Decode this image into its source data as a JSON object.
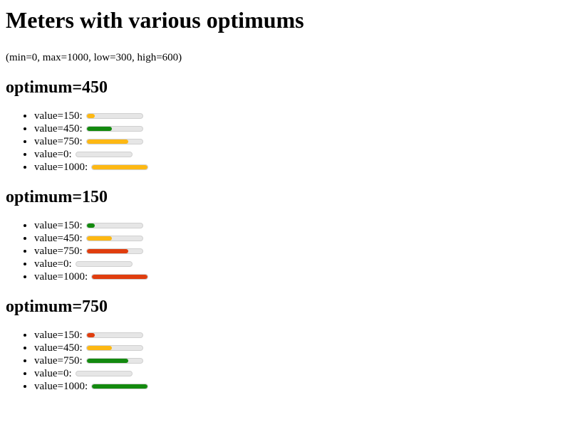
{
  "page": {
    "title": "Meters with various optimums",
    "subtitle": "(min=0, max=1000, low=300, high=600)"
  },
  "colors": {
    "good": "#138a0f",
    "suboptimal": "#fdb813",
    "poor": "#e03d0e",
    "track": "#e6e6e6"
  },
  "sections": [
    {
      "heading": "optimum=450",
      "items": [
        {
          "label": "value=150:",
          "value": 150,
          "status": "suboptimal"
        },
        {
          "label": "value=450:",
          "value": 450,
          "status": "good"
        },
        {
          "label": "value=750:",
          "value": 750,
          "status": "suboptimal"
        },
        {
          "label": "value=0:",
          "value": 0,
          "status": "suboptimal"
        },
        {
          "label": "value=1000:",
          "value": 1000,
          "status": "suboptimal"
        }
      ]
    },
    {
      "heading": "optimum=150",
      "items": [
        {
          "label": "value=150:",
          "value": 150,
          "status": "good"
        },
        {
          "label": "value=450:",
          "value": 450,
          "status": "suboptimal"
        },
        {
          "label": "value=750:",
          "value": 750,
          "status": "poor"
        },
        {
          "label": "value=0:",
          "value": 0,
          "status": "good"
        },
        {
          "label": "value=1000:",
          "value": 1000,
          "status": "poor"
        }
      ]
    },
    {
      "heading": "optimum=750",
      "items": [
        {
          "label": "value=150:",
          "value": 150,
          "status": "poor"
        },
        {
          "label": "value=450:",
          "value": 450,
          "status": "suboptimal"
        },
        {
          "label": "value=750:",
          "value": 750,
          "status": "good"
        },
        {
          "label": "value=0:",
          "value": 0,
          "status": "poor"
        },
        {
          "label": "value=1000:",
          "value": 1000,
          "status": "good"
        }
      ]
    }
  ]
}
